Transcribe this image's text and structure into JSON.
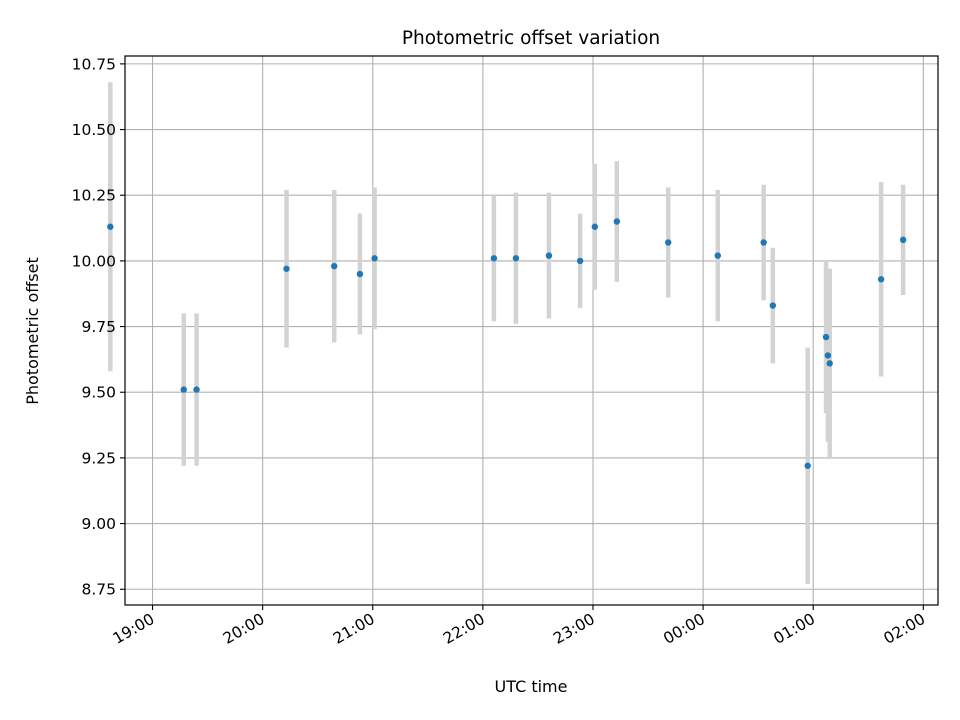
{
  "chart_data": {
    "type": "scatter",
    "title": "Photometric offset variation",
    "xlabel": "UTC time",
    "ylabel": "Photometric offset",
    "grid": true,
    "x_ticks": [
      "19:00",
      "20:00",
      "21:00",
      "22:00",
      "23:00",
      "00:00",
      "01:00",
      "02:00"
    ],
    "y_ticks": [
      "8.75",
      "9.00",
      "9.25",
      "9.50",
      "9.75",
      "10.00",
      "10.25",
      "10.50",
      "10.75"
    ],
    "xlim": [
      "18:45",
      "02:08"
    ],
    "ylim": [
      8.69,
      10.78
    ],
    "point_color": "#1f77b4",
    "errorbar_color": "#d3d3d3",
    "points": [
      {
        "x": "18:37",
        "y": 10.13,
        "err": 0.55
      },
      {
        "x": "19:17",
        "y": 9.51,
        "err": 0.29
      },
      {
        "x": "19:24",
        "y": 9.51,
        "err": 0.29
      },
      {
        "x": "20:13",
        "y": 9.97,
        "err": 0.3
      },
      {
        "x": "20:39",
        "y": 9.98,
        "err": 0.29
      },
      {
        "x": "20:53",
        "y": 9.95,
        "err": 0.23
      },
      {
        "x": "21:01",
        "y": 10.01,
        "err": 0.27
      },
      {
        "x": "22:06",
        "y": 10.01,
        "err": 0.24
      },
      {
        "x": "22:18",
        "y": 10.01,
        "err": 0.25
      },
      {
        "x": "22:36",
        "y": 10.02,
        "err": 0.24
      },
      {
        "x": "22:53",
        "y": 10.0,
        "err": 0.18
      },
      {
        "x": "23:01",
        "y": 10.13,
        "err": 0.24
      },
      {
        "x": "23:13",
        "y": 10.15,
        "err": 0.23
      },
      {
        "x": "23:41",
        "y": 10.07,
        "err": 0.21
      },
      {
        "x": "00:08",
        "y": 10.02,
        "err": 0.25
      },
      {
        "x": "00:33",
        "y": 10.07,
        "err": 0.22
      },
      {
        "x": "00:38",
        "y": 9.83,
        "err": 0.22
      },
      {
        "x": "00:57",
        "y": 9.22,
        "err": 0.45
      },
      {
        "x": "01:07",
        "y": 9.71,
        "err": 0.29
      },
      {
        "x": "01:08",
        "y": 9.64,
        "err": 0.33
      },
      {
        "x": "01:09",
        "y": 9.61,
        "err": 0.36
      },
      {
        "x": "01:37",
        "y": 9.93,
        "err": 0.37
      },
      {
        "x": "01:49",
        "y": 10.08,
        "err": 0.21
      }
    ]
  }
}
